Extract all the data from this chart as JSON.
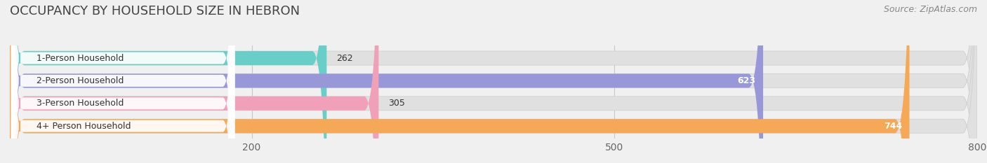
{
  "title": "OCCUPANCY BY HOUSEHOLD SIZE IN HEBRON",
  "source": "Source: ZipAtlas.com",
  "categories": [
    "1-Person Household",
    "2-Person Household",
    "3-Person Household",
    "4+ Person Household"
  ],
  "values": [
    262,
    623,
    305,
    744
  ],
  "bar_colors": [
    "#68cec8",
    "#9898d8",
    "#f0a0b8",
    "#f5a855"
  ],
  "label_colors": [
    "#333333",
    "#ffffff",
    "#333333",
    "#ffffff"
  ],
  "xlim": [
    0,
    800
  ],
  "xticks": [
    200,
    500,
    800
  ],
  "background_color": "#f0f0f0",
  "bar_bg_color": "#e0e0e0",
  "title_fontsize": 13,
  "source_fontsize": 9,
  "tick_fontsize": 10,
  "bar_label_fontsize": 9,
  "cat_label_fontsize": 9
}
